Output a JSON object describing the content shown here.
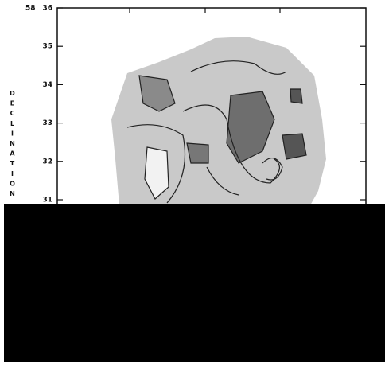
{
  "figure": {
    "axis_label": "DECLINATION",
    "degree_label": "58",
    "ylim": [
      31,
      36
    ],
    "yticks": [
      36,
      35,
      34,
      33,
      32,
      31
    ]
  }
}
